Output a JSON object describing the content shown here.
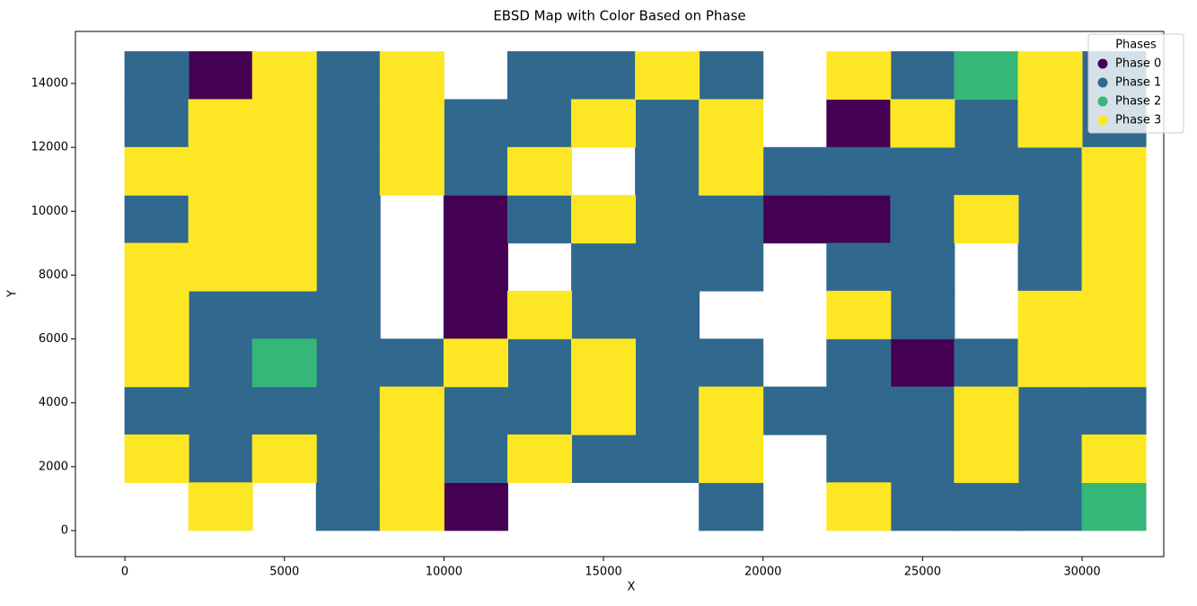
{
  "chart_data": {
    "type": "scatter",
    "title": "EBSD Map with Color Based on Phase",
    "x_label": "X",
    "y_label": "Y",
    "xlim": [
      -1550,
      32560
    ],
    "ylim": [
      -815,
      15630
    ],
    "xticks": [
      0,
      5000,
      10000,
      15000,
      20000,
      25000,
      30000
    ],
    "yticks": [
      0,
      2000,
      4000,
      6000,
      8000,
      10000,
      12000,
      14000
    ],
    "legend_title": "Phases",
    "legend": "upper right",
    "series": [
      {
        "name": "Phase 0",
        "color": "#440154",
        "x": [
          3000,
          23000,
          11000,
          21000,
          23000,
          11000,
          11000,
          25000,
          11000
        ],
        "y": [
          14250,
          12750,
          9750,
          9750,
          9750,
          8250,
          6750,
          5250,
          750
        ]
      },
      {
        "name": "Phase 1",
        "color": "#31688e",
        "x": [
          1000,
          7000,
          13000,
          15000,
          19000,
          25000,
          31000,
          1000,
          7000,
          11000,
          13000,
          17000,
          27000,
          31000,
          7000,
          11000,
          17000,
          21000,
          23000,
          25000,
          27000,
          29000,
          1000,
          7000,
          13000,
          17000,
          19000,
          25000,
          29000,
          7000,
          15000,
          17000,
          19000,
          23000,
          25000,
          29000,
          3000,
          5000,
          7000,
          15000,
          17000,
          25000,
          3000,
          7000,
          9000,
          13000,
          17000,
          19000,
          23000,
          27000,
          1000,
          3000,
          5000,
          7000,
          11000,
          13000,
          17000,
          21000,
          23000,
          25000,
          29000,
          31000,
          3000,
          7000,
          11000,
          15000,
          17000,
          23000,
          25000,
          29000,
          7000,
          19000,
          25000,
          27000,
          29000
        ],
        "y": [
          14250,
          14250,
          14250,
          14250,
          14250,
          14250,
          14250,
          12750,
          12750,
          12750,
          12750,
          12750,
          12750,
          12750,
          11250,
          11250,
          11250,
          11250,
          11250,
          11250,
          11250,
          11250,
          9750,
          9750,
          9750,
          9750,
          9750,
          9750,
          9750,
          8250,
          8250,
          8250,
          8250,
          8250,
          8250,
          8250,
          6750,
          6750,
          6750,
          6750,
          6750,
          6750,
          5250,
          5250,
          5250,
          5250,
          5250,
          5250,
          5250,
          5250,
          3750,
          3750,
          3750,
          3750,
          3750,
          3750,
          3750,
          3750,
          3750,
          3750,
          3750,
          3750,
          2250,
          2250,
          2250,
          2250,
          2250,
          2250,
          2250,
          2250,
          750,
          750,
          750,
          750,
          750
        ]
      },
      {
        "name": "Phase 2",
        "color": "#35b779",
        "x": [
          27000,
          5000,
          31000
        ],
        "y": [
          14250,
          5250,
          750
        ]
      },
      {
        "name": "Phase 3",
        "color": "#fde725",
        "x": [
          5000,
          9000,
          17000,
          23000,
          29000,
          3000,
          5000,
          9000,
          15000,
          19000,
          25000,
          29000,
          1000,
          3000,
          5000,
          9000,
          13000,
          19000,
          31000,
          3000,
          5000,
          15000,
          27000,
          31000,
          1000,
          3000,
          5000,
          31000,
          1000,
          13000,
          23000,
          29000,
          31000,
          1000,
          11000,
          15000,
          29000,
          31000,
          9000,
          15000,
          19000,
          27000,
          1000,
          5000,
          9000,
          13000,
          19000,
          27000,
          31000,
          3000,
          9000,
          23000
        ],
        "y": [
          14250,
          14250,
          14250,
          14250,
          14250,
          12750,
          12750,
          12750,
          12750,
          12750,
          12750,
          12750,
          11250,
          11250,
          11250,
          11250,
          11250,
          11250,
          11250,
          9750,
          9750,
          9750,
          9750,
          9750,
          8250,
          8250,
          8250,
          8250,
          6750,
          6750,
          6750,
          6750,
          6750,
          5250,
          5250,
          5250,
          5250,
          5250,
          3750,
          3750,
          3750,
          3750,
          2250,
          2250,
          2250,
          2250,
          2250,
          2250,
          2250,
          750,
          750,
          750
        ]
      }
    ]
  }
}
